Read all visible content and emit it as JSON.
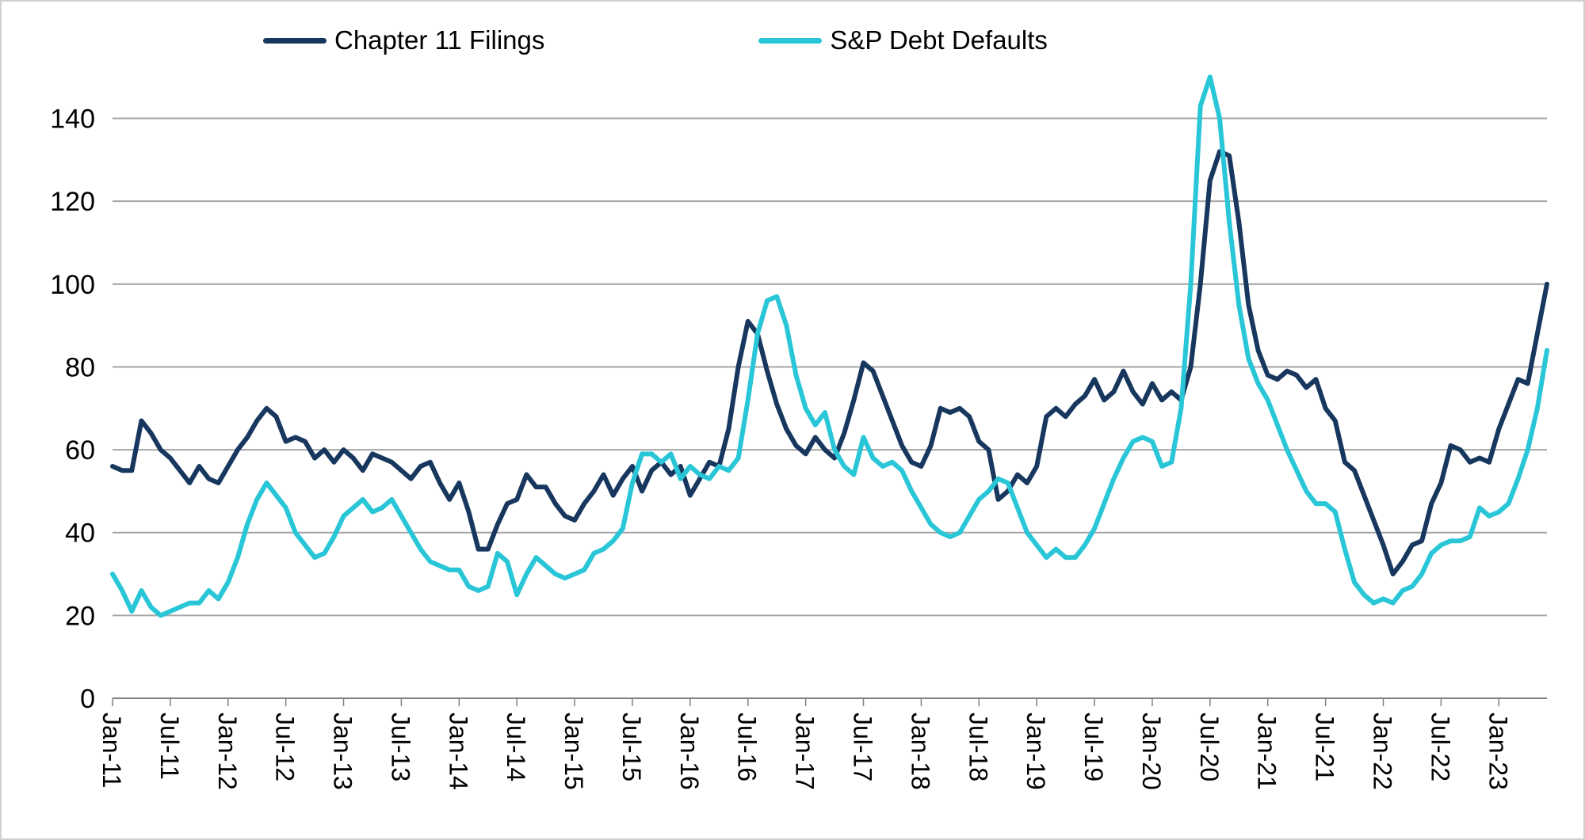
{
  "colors": {
    "background": "#ffffff",
    "frame_border": "#cfcfcf",
    "gridline": "#a6a6a6",
    "axis": "#808080",
    "text": "#000000"
  },
  "chart_data": {
    "type": "line",
    "title": "",
    "xlabel": "",
    "ylabel": "",
    "grid": "horizontal",
    "legend_position": "top",
    "x_frequency": "monthly",
    "x_start": "Jan-11",
    "x_end": "Jun-23",
    "y_ticks": [
      0,
      20,
      40,
      60,
      80,
      100,
      120,
      140
    ],
    "y_range": [
      0,
      151
    ],
    "x_tick_labels": [
      "Jan-11",
      "Jul-11",
      "Jan-12",
      "Jul-12",
      "Jan-13",
      "Jul-13",
      "Jan-14",
      "Jul-14",
      "Jan-15",
      "Jul-15",
      "Jan-16",
      "Jul-16",
      "Jan-17",
      "Jul-17",
      "Jan-18",
      "Jul-18",
      "Jan-19",
      "Jul-19",
      "Jan-20",
      "Jul-20",
      "Jan-21",
      "Jul-21",
      "Jan-22",
      "Jul-22",
      "Jan-23"
    ],
    "x_months": [
      "Jan-11",
      "Feb-11",
      "Mar-11",
      "Apr-11",
      "May-11",
      "Jun-11",
      "Jul-11",
      "Aug-11",
      "Sep-11",
      "Oct-11",
      "Nov-11",
      "Dec-11",
      "Jan-12",
      "Feb-12",
      "Mar-12",
      "Apr-12",
      "May-12",
      "Jun-12",
      "Jul-12",
      "Aug-12",
      "Sep-12",
      "Oct-12",
      "Nov-12",
      "Dec-12",
      "Jan-13",
      "Feb-13",
      "Mar-13",
      "Apr-13",
      "May-13",
      "Jun-13",
      "Jul-13",
      "Aug-13",
      "Sep-13",
      "Oct-13",
      "Nov-13",
      "Dec-13",
      "Jan-14",
      "Feb-14",
      "Mar-14",
      "Apr-14",
      "May-14",
      "Jun-14",
      "Jul-14",
      "Aug-14",
      "Sep-14",
      "Oct-14",
      "Nov-14",
      "Dec-14",
      "Jan-15",
      "Feb-15",
      "Mar-15",
      "Apr-15",
      "May-15",
      "Jun-15",
      "Jul-15",
      "Aug-15",
      "Sep-15",
      "Oct-15",
      "Nov-15",
      "Dec-15",
      "Jan-16",
      "Feb-16",
      "Mar-16",
      "Apr-16",
      "May-16",
      "Jun-16",
      "Jul-16",
      "Aug-16",
      "Sep-16",
      "Oct-16",
      "Nov-16",
      "Dec-16",
      "Jan-17",
      "Feb-17",
      "Mar-17",
      "Apr-17",
      "May-17",
      "Jun-17",
      "Jul-17",
      "Aug-17",
      "Sep-17",
      "Oct-17",
      "Nov-17",
      "Dec-17",
      "Jan-18",
      "Feb-18",
      "Mar-18",
      "Apr-18",
      "May-18",
      "Jun-18",
      "Jul-18",
      "Aug-18",
      "Sep-18",
      "Oct-18",
      "Nov-18",
      "Dec-18",
      "Jan-19",
      "Feb-19",
      "Mar-19",
      "Apr-19",
      "May-19",
      "Jun-19",
      "Jul-19",
      "Aug-19",
      "Sep-19",
      "Oct-19",
      "Nov-19",
      "Dec-19",
      "Jan-20",
      "Feb-20",
      "Mar-20",
      "Apr-20",
      "May-20",
      "Jun-20",
      "Jul-20",
      "Aug-20",
      "Sep-20",
      "Oct-20",
      "Nov-20",
      "Dec-20",
      "Jan-21",
      "Feb-21",
      "Mar-21",
      "Apr-21",
      "May-21",
      "Jun-21",
      "Jul-21",
      "Aug-21",
      "Sep-21",
      "Oct-21",
      "Nov-21",
      "Dec-21",
      "Jan-22",
      "Feb-22",
      "Mar-22",
      "Apr-22",
      "May-22",
      "Jun-22",
      "Jul-22",
      "Aug-22",
      "Sep-22",
      "Oct-22",
      "Nov-22",
      "Dec-22",
      "Jan-23",
      "Feb-23",
      "Mar-23",
      "Apr-23",
      "May-23",
      "Jun-23"
    ],
    "series": [
      {
        "name": "Chapter 11 Filings",
        "color": "#17375e",
        "values": [
          56,
          55,
          55,
          67,
          64,
          60,
          58,
          55,
          52,
          56,
          53,
          52,
          56,
          60,
          63,
          67,
          70,
          68,
          62,
          63,
          62,
          58,
          60,
          57,
          60,
          58,
          55,
          59,
          58,
          57,
          55,
          53,
          56,
          57,
          52,
          48,
          52,
          45,
          36,
          36,
          42,
          47,
          48,
          54,
          51,
          51,
          47,
          44,
          43,
          47,
          50,
          54,
          49,
          53,
          56,
          50,
          55,
          57,
          54,
          56,
          49,
          53,
          57,
          56,
          65,
          80,
          91,
          88,
          79,
          71,
          65,
          61,
          59,
          63,
          60,
          58,
          64,
          72,
          81,
          79,
          73,
          67,
          61,
          57,
          56,
          61,
          70,
          69,
          70,
          68,
          62,
          60,
          48,
          50,
          54,
          52,
          56,
          68,
          70,
          68,
          71,
          73,
          77,
          72,
          74,
          79,
          74,
          71,
          76,
          72,
          74,
          72,
          80,
          100,
          125,
          132,
          131,
          115,
          95,
          84,
          78,
          77,
          79,
          78,
          75,
          77,
          70,
          67,
          57,
          55,
          49,
          43,
          37,
          30,
          33,
          37,
          38,
          47,
          52,
          61,
          60,
          57,
          58,
          57,
          65,
          71,
          77,
          76,
          88,
          100
        ]
      },
      {
        "name": "S&P Debt Defaults",
        "color": "#29c6d8",
        "values": [
          30,
          26,
          21,
          26,
          22,
          20,
          21,
          22,
          23,
          23,
          26,
          24,
          28,
          34,
          42,
          48,
          52,
          49,
          46,
          40,
          37,
          34,
          35,
          39,
          44,
          46,
          48,
          45,
          46,
          48,
          44,
          40,
          36,
          33,
          32,
          31,
          31,
          27,
          26,
          27,
          35,
          33,
          25,
          30,
          34,
          32,
          30,
          29,
          30,
          31,
          35,
          36,
          38,
          41,
          52,
          59,
          59,
          57,
          59,
          53,
          56,
          54,
          53,
          56,
          55,
          58,
          72,
          88,
          96,
          97,
          90,
          78,
          70,
          66,
          69,
          60,
          56,
          54,
          63,
          58,
          56,
          57,
          55,
          50,
          46,
          42,
          40,
          39,
          40,
          44,
          48,
          50,
          53,
          52,
          46,
          40,
          37,
          34,
          36,
          34,
          34,
          37,
          41,
          47,
          53,
          58,
          62,
          63,
          62,
          56,
          57,
          70,
          100,
          143,
          150,
          140,
          115,
          95,
          82,
          76,
          72,
          66,
          60,
          55,
          50,
          47,
          47,
          45,
          36,
          28,
          25,
          23,
          24,
          23,
          26,
          27,
          30,
          35,
          37,
          38,
          38,
          39,
          46,
          44,
          45,
          47,
          53,
          60,
          70,
          84
        ]
      }
    ]
  }
}
